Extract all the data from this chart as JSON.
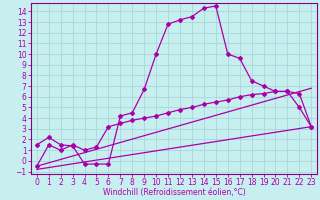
{
  "xlabel": "Windchill (Refroidissement éolien,°C)",
  "bg_color": "#c8efef",
  "grid_color": "#a8d8d8",
  "line_color": "#aa00aa",
  "spine_color": "#880088",
  "xlim": [
    -0.5,
    23.5
  ],
  "ylim": [
    -1.2,
    14.8
  ],
  "xticks": [
    0,
    1,
    2,
    3,
    4,
    5,
    6,
    7,
    8,
    9,
    10,
    11,
    12,
    13,
    14,
    15,
    16,
    17,
    18,
    19,
    20,
    21,
    22,
    23
  ],
  "yticks": [
    -1,
    0,
    1,
    2,
    3,
    4,
    5,
    6,
    7,
    8,
    9,
    10,
    11,
    12,
    13,
    14
  ],
  "series0_x": [
    0,
    1,
    2,
    3,
    4,
    5,
    6,
    7,
    8,
    9,
    10,
    11,
    12,
    13,
    14,
    15,
    16,
    17,
    18,
    19,
    20,
    21,
    22,
    23
  ],
  "series0_y": [
    1.5,
    2.2,
    1.5,
    1.4,
    -0.3,
    -0.3,
    -0.3,
    4.2,
    4.5,
    6.7,
    10.0,
    12.8,
    13.2,
    13.5,
    14.3,
    14.5,
    10.0,
    9.6,
    7.5,
    7.0,
    6.5,
    6.5,
    5.0,
    3.2
  ],
  "series1_x": [
    0,
    1,
    2,
    3,
    4,
    5,
    6,
    7,
    8,
    9,
    10,
    11,
    12,
    13,
    14,
    15,
    16,
    17,
    18,
    19,
    20,
    21,
    22,
    23
  ],
  "series1_y": [
    -0.5,
    1.5,
    1.0,
    1.5,
    1.0,
    1.3,
    3.2,
    3.5,
    3.8,
    4.0,
    4.2,
    4.5,
    4.8,
    5.0,
    5.3,
    5.5,
    5.7,
    6.0,
    6.2,
    6.3,
    6.5,
    6.5,
    6.3,
    3.2
  ],
  "series2_x": [
    0,
    23
  ],
  "series2_y": [
    -0.5,
    6.8
  ],
  "series3_x": [
    0,
    23
  ],
  "series3_y": [
    -0.8,
    3.2
  ],
  "marker": "D",
  "markersize": 2.0,
  "linewidth": 0.9,
  "tick_fontsize": 5.5,
  "xlabel_fontsize": 5.5
}
